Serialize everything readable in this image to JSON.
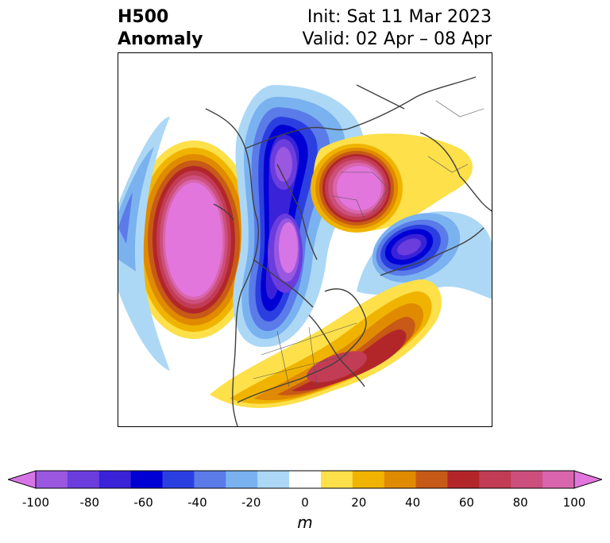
{
  "title": {
    "line1": "H500",
    "line2": "Anomaly"
  },
  "init": {
    "line1": "Init: Sat 11 Mar 2023",
    "line2": "Valid: 02 Apr – 08 Apr"
  },
  "colorbar": {
    "unit": "m",
    "ticks": [
      "-100",
      "-80",
      "-60",
      "-40",
      "-20",
      "0",
      "20",
      "40",
      "60",
      "80",
      "100"
    ],
    "colors": [
      "#d675e6",
      "#9a57e0",
      "#6b3ddd",
      "#3a22d8",
      "#0000d4",
      "#2b3fe0",
      "#5a7be8",
      "#7ab2f0",
      "#acd8f6",
      "#ffffff",
      "#fde04a",
      "#f0b400",
      "#e08a00",
      "#c75a16",
      "#b2262a",
      "#c23c55",
      "#cc4f7d",
      "#d966ad",
      "#e276dc"
    ],
    "min": -100,
    "max": 100,
    "extend": "both"
  }
}
